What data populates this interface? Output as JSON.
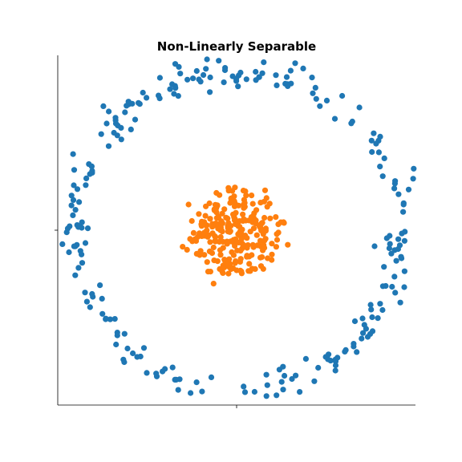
{
  "chart_data": {
    "type": "scatter",
    "title": "Non-Linearly Separable",
    "xlabel": "",
    "ylabel": "",
    "xlim": [
      -1.1,
      1.1
    ],
    "ylim": [
      -1.1,
      1.1
    ],
    "xticks": [
      0
    ],
    "yticks": [
      0
    ],
    "tick_labels_visible": false,
    "grid": false,
    "legend": "none",
    "spines": [
      "left",
      "bottom"
    ],
    "series": [
      {
        "color": "#1f77b4",
        "count": 250,
        "shape": "ring",
        "center": [
          0,
          0
        ],
        "radius": 1.0,
        "noise": 0.05,
        "seed": 11
      },
      {
        "color": "#ff7f0e",
        "count": 250,
        "shape": "blob",
        "center": [
          0,
          0
        ],
        "radius": 0.26,
        "noise": 0.12,
        "seed": 23
      }
    ]
  }
}
